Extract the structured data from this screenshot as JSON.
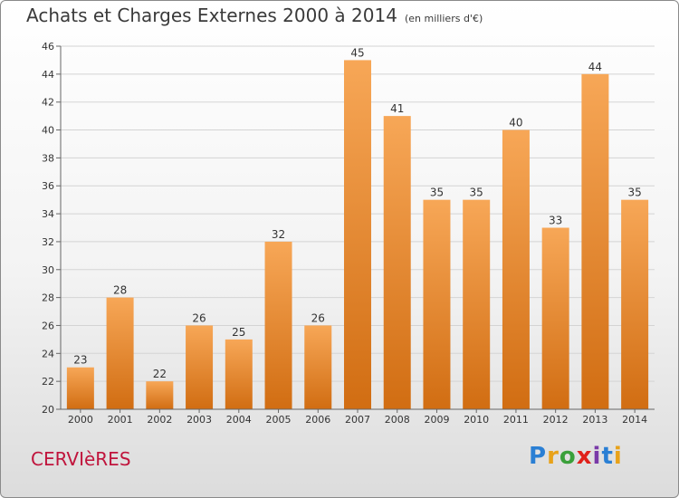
{
  "title": "Achats et Charges Externes 2000 à 2014",
  "unit": "(en milliers d'€)",
  "commune": "CERVIèRES",
  "logo": {
    "letters": [
      "P",
      "r",
      "o",
      "x",
      "i",
      "t",
      "i"
    ],
    "colors": [
      "#2a7fd4",
      "#e8a21a",
      "#3aa03a",
      "#e0211a",
      "#7a3aa8",
      "#2a7fd4",
      "#e8a21a"
    ]
  },
  "chart_data": {
    "type": "bar",
    "categories": [
      "2000",
      "2001",
      "2002",
      "2003",
      "2004",
      "2005",
      "2006",
      "2007",
      "2008",
      "2009",
      "2010",
      "2011",
      "2012",
      "2013",
      "2014"
    ],
    "values": [
      23,
      28,
      22,
      26,
      25,
      32,
      26,
      45,
      41,
      35,
      35,
      40,
      33,
      44,
      35
    ],
    "ylim": [
      20,
      46
    ],
    "yticks": [
      20,
      22,
      24,
      26,
      28,
      30,
      32,
      34,
      36,
      38,
      40,
      42,
      44,
      46
    ],
    "grid": true,
    "colors": {
      "bar_top": "#f7a757",
      "bar_bottom": "#d16d12",
      "grid": "#d4d4d4"
    }
  }
}
